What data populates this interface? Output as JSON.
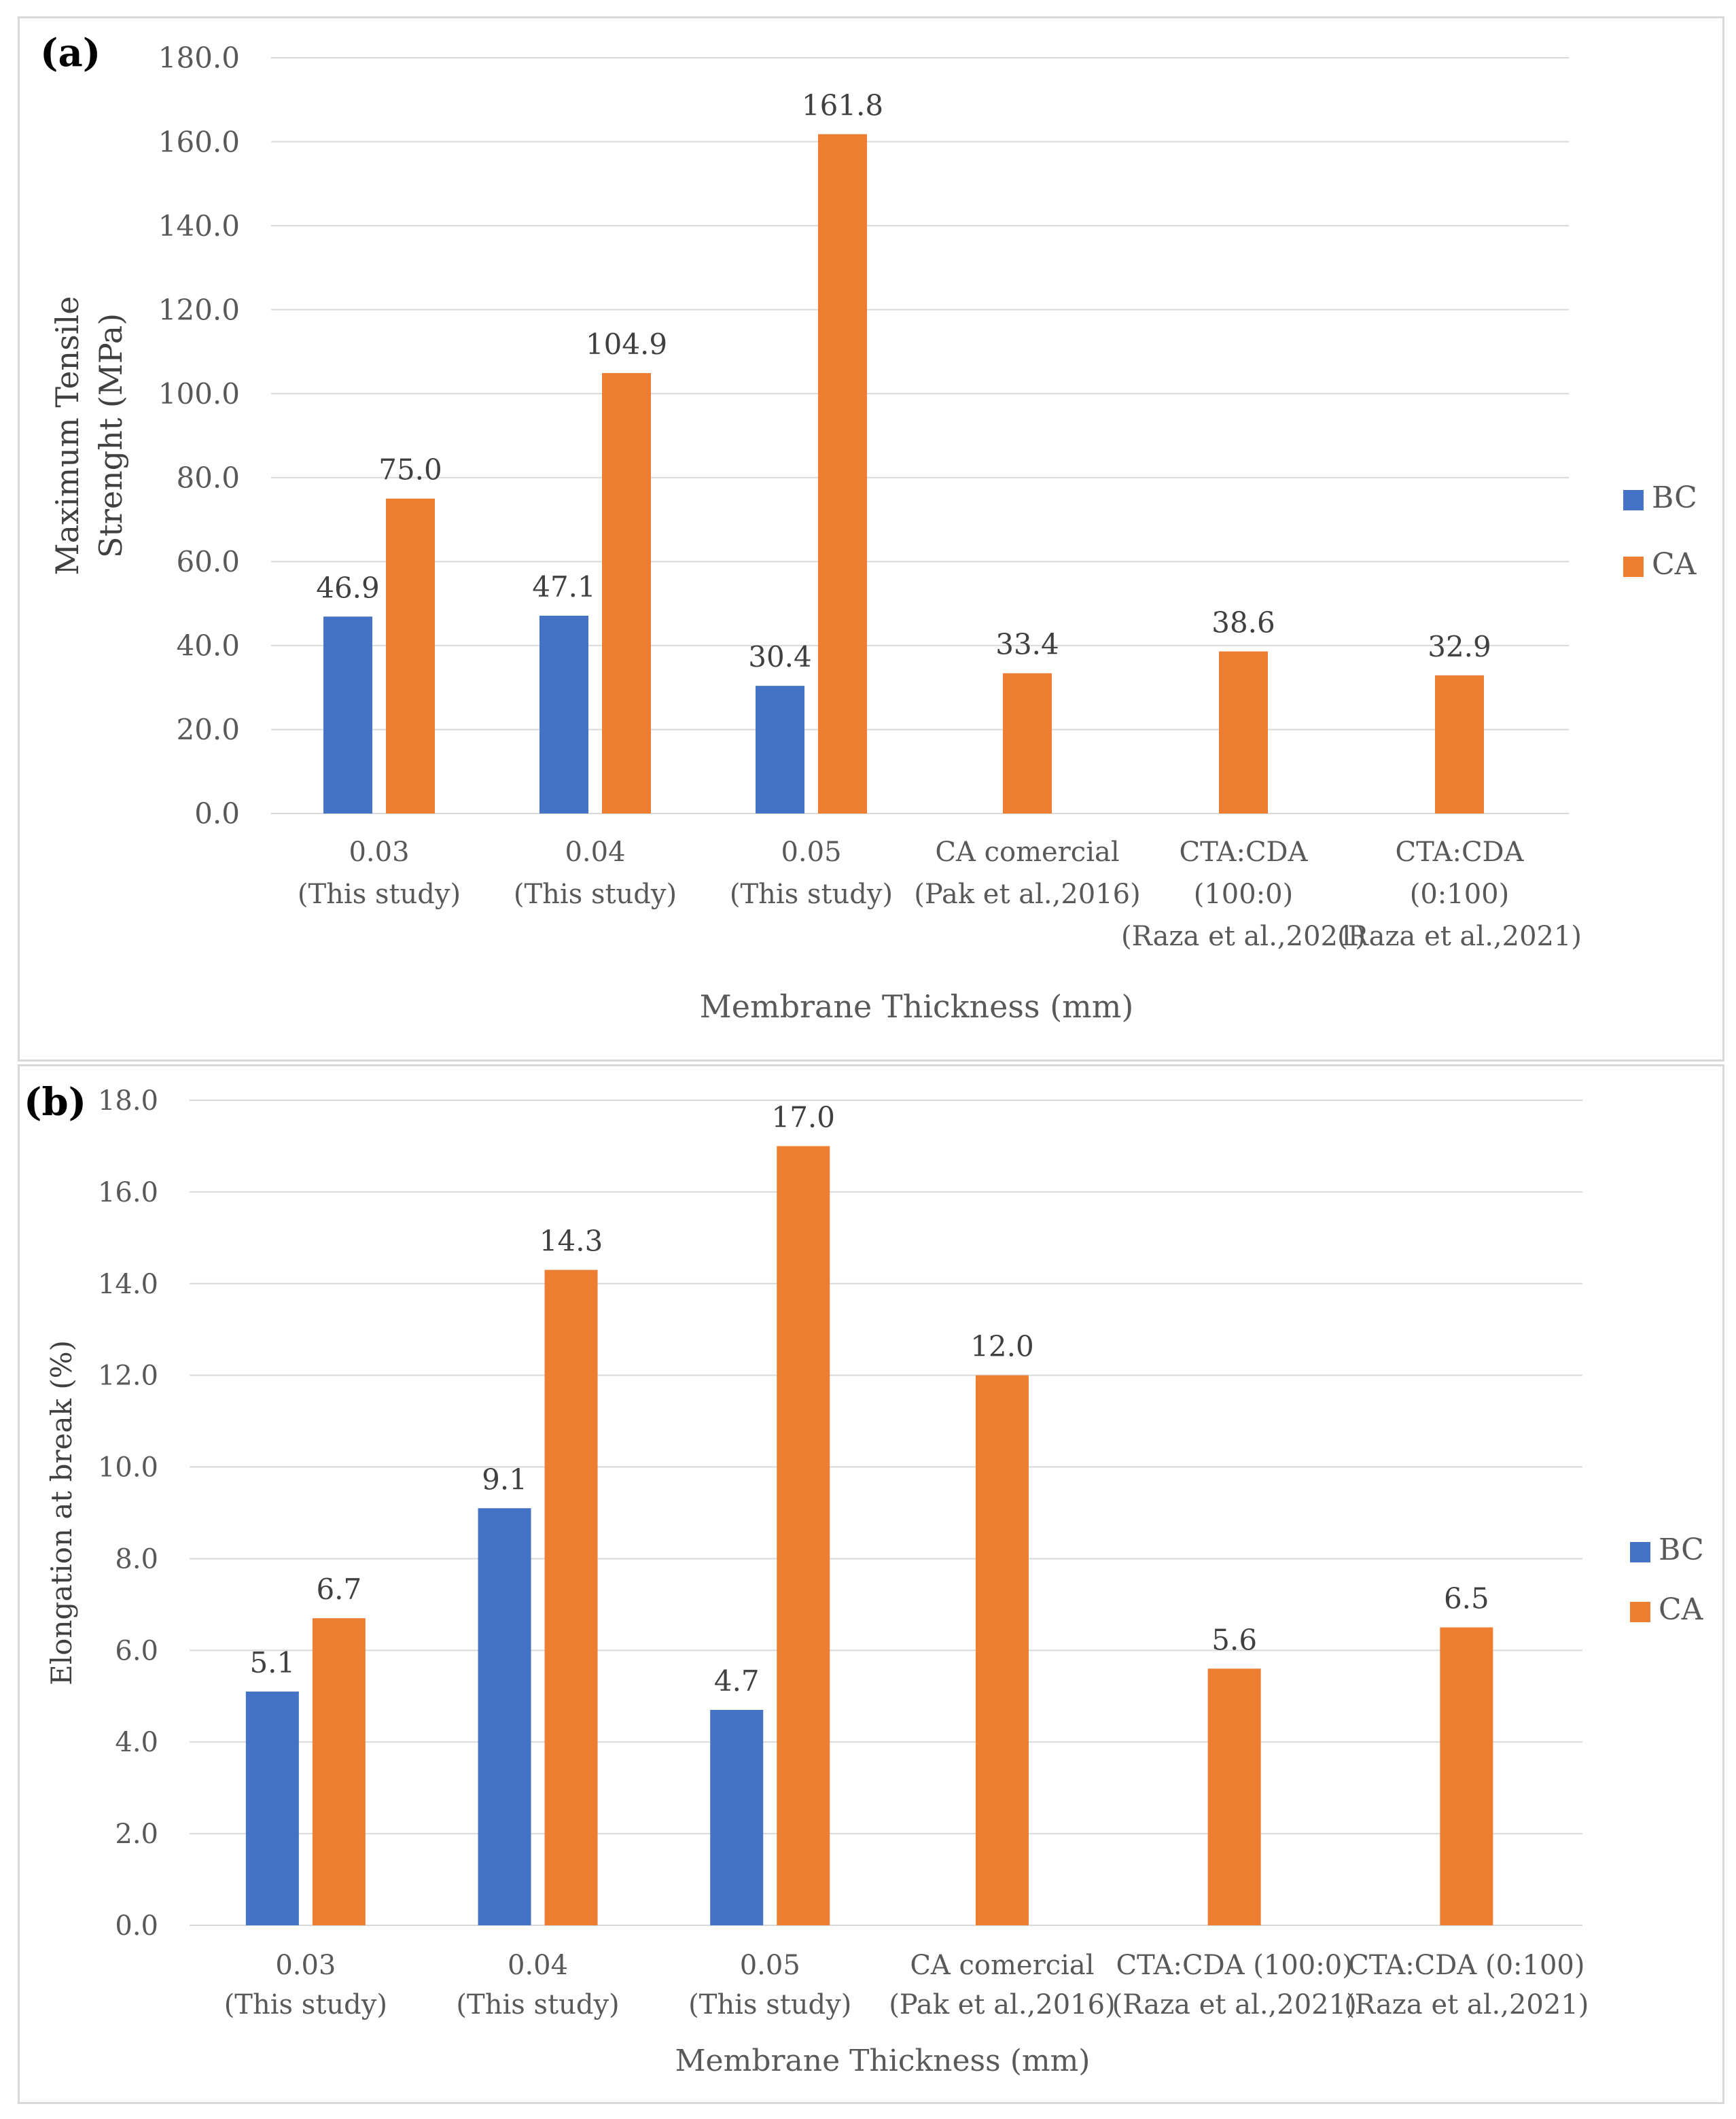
{
  "colors": {
    "bc": "#4472C4",
    "ca": "#ED7D31",
    "grid": "#d9d9d9",
    "text": "#595959",
    "panel_label": "#000000"
  },
  "chart_data": [
    {
      "type": "bar",
      "panel_label": "(a)",
      "title": "",
      "xlabel": "Membrane Thickness (mm)",
      "ylabel_lines": [
        "Maximum  Tensile",
        "Strenght (MPa)"
      ],
      "ylim": [
        0,
        180
      ],
      "yticks": [
        0,
        20,
        40,
        60,
        80,
        100,
        120,
        140,
        160,
        180
      ],
      "ytick_labels": [
        "0.0",
        "20.0",
        "40.0",
        "60.0",
        "80.0",
        "100.0",
        "120.0",
        "140.0",
        "160.0",
        "180.0"
      ],
      "legend_position": "right",
      "categories": [
        [
          "0.03",
          "(This study)"
        ],
        [
          "0.04",
          "(This study)"
        ],
        [
          "0.05",
          "(This study)"
        ],
        [
          "CA comercial",
          "(Pak et al.,2016)"
        ],
        [
          "CTA:CDA",
          "(100:0)",
          "(Raza et al.,2021)"
        ],
        [
          "CTA:CDA",
          "(0:100)",
          "(Raza et al.,2021)"
        ]
      ],
      "series": [
        {
          "name": "BC",
          "values": [
            46.9,
            47.1,
            30.4,
            null,
            null,
            null
          ],
          "labels": [
            "46.9",
            "47.1",
            "30.4",
            null,
            null,
            null
          ]
        },
        {
          "name": "CA",
          "values": [
            75.0,
            104.9,
            161.8,
            33.4,
            38.6,
            32.9
          ],
          "labels": [
            "75.0",
            "104.9",
            "161.8",
            "33.4",
            "38.6",
            "32.9"
          ]
        }
      ]
    },
    {
      "type": "bar",
      "panel_label": "(b)",
      "title": "",
      "xlabel": "Membrane Thickness (mm)",
      "ylabel_lines": [
        "Elongation at break (%)"
      ],
      "ylim": [
        0,
        18
      ],
      "yticks": [
        0,
        2,
        4,
        6,
        8,
        10,
        12,
        14,
        16,
        18
      ],
      "ytick_labels": [
        "0.0",
        "2.0",
        "4.0",
        "6.0",
        "8.0",
        "10.0",
        "12.0",
        "14.0",
        "16.0",
        "18.0"
      ],
      "legend_position": "right",
      "categories": [
        [
          "0.03",
          "(This study)"
        ],
        [
          "0.04",
          "(This study)"
        ],
        [
          "0.05",
          "(This study)"
        ],
        [
          "CA comercial",
          "(Pak et al.,2016)"
        ],
        [
          "CTA:CDA (100:0)",
          "(Raza et al.,2021)"
        ],
        [
          "CTA:CDA (0:100)",
          "(Raza et al.,2021)"
        ]
      ],
      "series": [
        {
          "name": "BC",
          "values": [
            5.1,
            9.1,
            4.7,
            null,
            null,
            null
          ],
          "labels": [
            "5.1",
            "9.1",
            "4.7",
            null,
            null,
            null
          ]
        },
        {
          "name": "CA",
          "values": [
            6.7,
            14.3,
            17.0,
            12.0,
            5.6,
            6.5
          ],
          "labels": [
            "6.7",
            "14.3",
            "17.0",
            "12.0",
            "5.6",
            "6.5"
          ]
        }
      ]
    }
  ]
}
